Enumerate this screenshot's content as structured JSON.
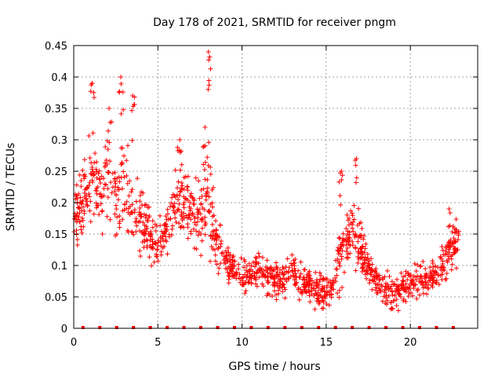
{
  "chart_data": {
    "type": "scatter",
    "title": "Day 178 of 2021, SRMTID for receiver pngm",
    "xlabel": "GPS time / hours",
    "ylabel": "SRMTID / TECUs",
    "xlim": [
      0,
      24
    ],
    "ylim": [
      0,
      0.45
    ],
    "x_ticks": [
      0,
      5,
      10,
      15,
      20
    ],
    "x_tick_labels": [
      "0",
      "5",
      "10",
      "15",
      "20"
    ],
    "y_ticks": [
      0,
      0.05,
      0.1,
      0.15,
      0.2,
      0.25,
      0.3,
      0.35,
      0.4,
      0.45
    ],
    "y_tick_labels": [
      "0",
      "0.05",
      "0.1",
      "0.15",
      "0.2",
      "0.25",
      "0.3",
      "0.35",
      "0.4",
      "0.45"
    ],
    "grid": true,
    "marker": "plus",
    "color": "#ff0000",
    "series": [
      {
        "name": "SRMTID",
        "envelope_hours": [
          0.0,
          0.5,
          1.0,
          1.5,
          2.0,
          2.5,
          3.0,
          3.5,
          4.0,
          4.5,
          5.0,
          5.5,
          6.0,
          6.5,
          7.0,
          7.5,
          8.0,
          8.5,
          9.0,
          9.5,
          10.0,
          10.5,
          11.0,
          11.5,
          12.0,
          12.5,
          13.0,
          13.5,
          14.0,
          14.5,
          15.0,
          15.5,
          16.0,
          16.5,
          17.0,
          17.5,
          18.0,
          18.5,
          19.0,
          19.5,
          20.0,
          20.5,
          21.0,
          21.5,
          22.0,
          22.5,
          22.9
        ],
        "center": [
          0.17,
          0.2,
          0.24,
          0.21,
          0.24,
          0.21,
          0.24,
          0.18,
          0.18,
          0.15,
          0.13,
          0.16,
          0.21,
          0.2,
          0.19,
          0.18,
          0.2,
          0.14,
          0.11,
          0.09,
          0.08,
          0.09,
          0.09,
          0.08,
          0.08,
          0.08,
          0.09,
          0.07,
          0.07,
          0.06,
          0.06,
          0.08,
          0.13,
          0.15,
          0.13,
          0.1,
          0.08,
          0.06,
          0.05,
          0.07,
          0.07,
          0.08,
          0.08,
          0.09,
          0.11,
          0.13,
          0.14
        ],
        "spread": [
          0.05,
          0.06,
          0.08,
          0.07,
          0.08,
          0.07,
          0.09,
          0.07,
          0.06,
          0.05,
          0.04,
          0.05,
          0.06,
          0.06,
          0.06,
          0.06,
          0.1,
          0.05,
          0.03,
          0.03,
          0.03,
          0.03,
          0.03,
          0.03,
          0.03,
          0.03,
          0.03,
          0.03,
          0.03,
          0.03,
          0.03,
          0.04,
          0.06,
          0.05,
          0.05,
          0.03,
          0.03,
          0.03,
          0.03,
          0.03,
          0.03,
          0.03,
          0.03,
          0.03,
          0.04,
          0.04,
          0.03
        ],
        "peaks": [
          {
            "x": 1.1,
            "y": 0.39
          },
          {
            "x": 2.8,
            "y": 0.4
          },
          {
            "x": 2.1,
            "y": 0.35
          },
          {
            "x": 3.5,
            "y": 0.37
          },
          {
            "x": 6.3,
            "y": 0.3
          },
          {
            "x": 7.8,
            "y": 0.32
          },
          {
            "x": 8.0,
            "y": 0.44
          },
          {
            "x": 15.9,
            "y": 0.25
          },
          {
            "x": 16.8,
            "y": 0.27
          },
          {
            "x": 22.3,
            "y": 0.19
          }
        ]
      }
    ],
    "zero_markers_hours": [
      0.55,
      1.55,
      2.55,
      3.55,
      4.55,
      5.55,
      6.55,
      7.55,
      8.55,
      9.55,
      10.55,
      11.55,
      12.55,
      13.55,
      14.55,
      15.55,
      16.55,
      17.55,
      18.55,
      19.55,
      20.55,
      21.55,
      22.55
    ]
  }
}
